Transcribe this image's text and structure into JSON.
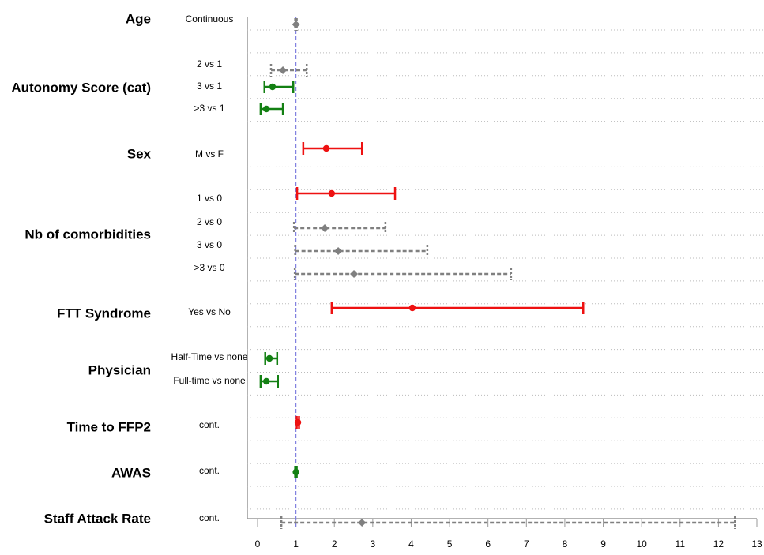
{
  "chart_data": {
    "type": "forest",
    "xlim": [
      0,
      13
    ],
    "xticks": [
      0,
      1,
      2,
      3,
      4,
      5,
      6,
      7,
      8,
      9,
      10,
      11,
      12,
      13
    ],
    "reference_line": 1,
    "reference_color": "#8080e0",
    "groups": [
      {
        "label": "Age",
        "rows": [
          {
            "label": "Continuous",
            "estimate": 1.0,
            "low": 0.98,
            "high": 1.02,
            "color": "#808080",
            "line_style": "dashed"
          }
        ]
      },
      {
        "label": "Autonomy Score (cat)",
        "rows": [
          {
            "label": "2 vs 1",
            "estimate": 0.66,
            "low": 0.35,
            "high": 1.28,
            "color": "#808080",
            "line_style": "dashed"
          },
          {
            "label": "3 vs 1",
            "estimate": 0.39,
            "low": 0.18,
            "high": 0.93,
            "color": "#138013",
            "line_style": "solid"
          },
          {
            "label": ">3 vs 1",
            "estimate": 0.23,
            "low": 0.08,
            "high": 0.66,
            "color": "#138013",
            "line_style": "solid"
          }
        ]
      },
      {
        "label": "Sex",
        "rows": [
          {
            "label": "M vs F",
            "estimate": 1.79,
            "low": 1.19,
            "high": 2.72,
            "color": "#ee1111",
            "line_style": "solid"
          }
        ]
      },
      {
        "label": "Nb of comorbidities",
        "rows": [
          {
            "label": "1 vs 0",
            "estimate": 1.93,
            "low": 1.03,
            "high": 3.58,
            "color": "#ee1111",
            "line_style": "solid"
          },
          {
            "label": "2 vs 0",
            "estimate": 1.75,
            "low": 0.95,
            "high": 3.33,
            "color": "#808080",
            "line_style": "dashed"
          },
          {
            "label": "3 vs 0",
            "estimate": 2.1,
            "low": 0.98,
            "high": 4.42,
            "color": "#808080",
            "line_style": "dashed"
          },
          {
            "label": ">3 vs 0",
            "estimate": 2.51,
            "low": 0.97,
            "high": 6.6,
            "color": "#808080",
            "line_style": "dashed"
          }
        ]
      },
      {
        "label": "FTT Syndrome",
        "rows": [
          {
            "label": "Yes vs No",
            "estimate": 4.03,
            "low": 1.93,
            "high": 8.48,
            "color": "#ee1111",
            "line_style": "solid"
          }
        ]
      },
      {
        "label": "Physician",
        "rows": [
          {
            "label": "Half-Time vs none",
            "estimate": 0.31,
            "low": 0.2,
            "high": 0.51,
            "color": "#138013",
            "line_style": "solid"
          },
          {
            "label": "Full-time vs none",
            "estimate": 0.23,
            "low": 0.08,
            "high": 0.53,
            "color": "#138013",
            "line_style": "solid"
          }
        ]
      },
      {
        "label": "Time to FFP2",
        "rows": [
          {
            "label": "cont.",
            "estimate": 1.05,
            "low": 1.02,
            "high": 1.08,
            "color": "#ee1111",
            "line_style": "solid"
          }
        ]
      },
      {
        "label": "AWAS",
        "rows": [
          {
            "label": "cont.",
            "estimate": 1.0,
            "low": 0.98,
            "high": 1.02,
            "color": "#138013",
            "line_style": "solid"
          }
        ]
      },
      {
        "label": "Staff Attack Rate",
        "rows": [
          {
            "label": "cont.",
            "estimate": 2.72,
            "low": 0.62,
            "high": 12.43,
            "color": "#808080",
            "line_style": "dashed"
          }
        ]
      }
    ]
  }
}
